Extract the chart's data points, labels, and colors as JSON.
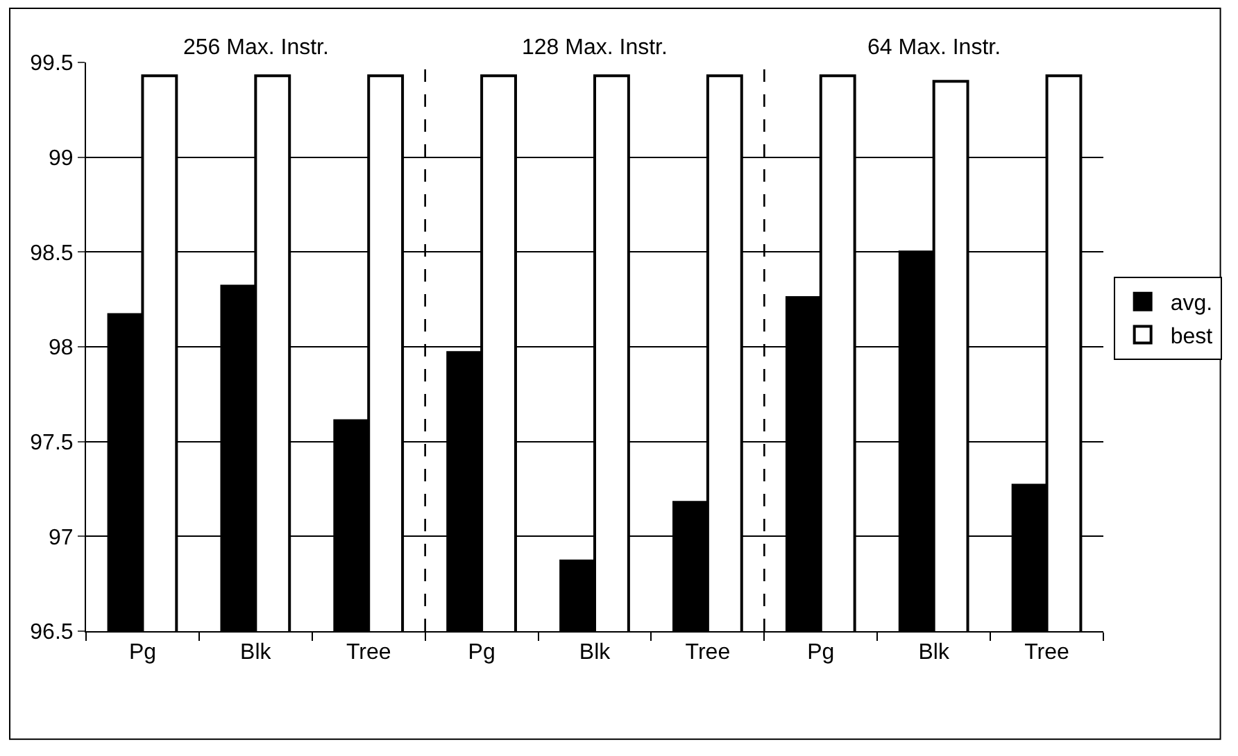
{
  "chart_data": {
    "type": "bar",
    "categories": [
      "Pg",
      "Blk",
      "Tree",
      "Pg",
      "Blk",
      "Tree",
      "Pg",
      "Blk",
      "Tree"
    ],
    "series": [
      {
        "name": "avg.",
        "color": "#000000",
        "values": [
          98.17,
          98.32,
          97.61,
          97.97,
          96.87,
          97.18,
          98.26,
          98.5,
          97.27
        ]
      },
      {
        "name": "best",
        "color": "#ffffff",
        "values": [
          99.43,
          99.43,
          99.43,
          99.43,
          99.43,
          99.43,
          99.43,
          99.4,
          99.43
        ]
      }
    ],
    "ylim": [
      96.5,
      99.5
    ],
    "yticks": [
      96.5,
      97,
      97.5,
      98,
      98.5,
      99,
      99.5
    ],
    "grid": "y",
    "legend": "right",
    "annotations": [
      "256 Max. Instr.",
      "128 Max. Instr.",
      "64 Max. Instr."
    ]
  }
}
